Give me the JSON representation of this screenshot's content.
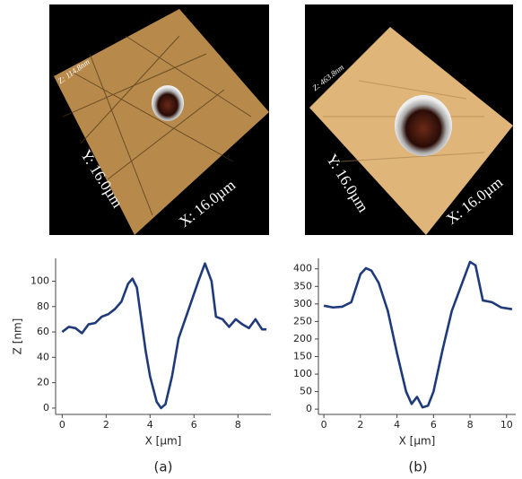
{
  "images": [
    {
      "z_label": "Z: 114.8nm",
      "y_label": "Y: 16.0µm",
      "x_label": "X: 16.0µm",
      "caption": "(a)"
    },
    {
      "z_label": "Z: 463.8nm",
      "y_label": "Y: 16.0µm",
      "x_label": "X: 16.0µm",
      "caption": "(b)"
    }
  ],
  "chart_data": [
    {
      "type": "line",
      "x_label": "X [µm]",
      "y_label": "Z [nm]",
      "x": [
        0,
        0.3,
        0.6,
        0.9,
        1.2,
        1.5,
        1.8,
        2.1,
        2.4,
        2.7,
        3.0,
        3.2,
        3.4,
        3.6,
        3.8,
        4.0,
        4.3,
        4.5,
        4.7,
        5.0,
        5.3,
        5.6,
        5.9,
        6.2,
        6.5,
        6.8,
        7.0,
        7.3,
        7.6,
        7.9,
        8.2,
        8.5,
        8.8,
        9.1,
        9.3
      ],
      "series": [
        {
          "color": "#1f3a7a",
          "values": [
            60,
            64,
            63,
            59,
            66,
            67,
            72,
            74,
            78,
            84,
            98,
            102,
            95,
            70,
            45,
            25,
            5,
            0,
            3,
            25,
            55,
            70,
            85,
            100,
            114,
            100,
            72,
            70,
            64,
            70,
            66,
            63,
            70,
            62,
            62
          ]
        }
      ],
      "xlim": [
        -0.3,
        9.5
      ],
      "xticks": [
        0,
        2,
        4,
        6,
        8
      ],
      "ylim": [
        -5,
        118
      ],
      "yticks": [
        0,
        20,
        40,
        60,
        80,
        100
      ]
    },
    {
      "type": "line",
      "x_label": "X [µm]",
      "x": [
        0,
        0.5,
        1.0,
        1.5,
        2.0,
        2.3,
        2.6,
        3.0,
        3.5,
        4.0,
        4.5,
        4.8,
        5.1,
        5.4,
        5.7,
        6.0,
        6.5,
        7.0,
        7.5,
        8.0,
        8.3,
        8.7,
        9.2,
        9.7,
        10.3
      ],
      "series": [
        {
          "color": "#1f3a7a",
          "values": [
            295,
            290,
            292,
            305,
            385,
            402,
            395,
            360,
            280,
            160,
            50,
            15,
            35,
            5,
            10,
            50,
            170,
            280,
            350,
            420,
            410,
            310,
            305,
            290,
            285
          ]
        }
      ],
      "xlim": [
        -0.3,
        10.5
      ],
      "xticks": [
        0,
        2,
        4,
        6,
        8,
        10
      ],
      "ylim": [
        -15,
        430
      ],
      "yticks": [
        0,
        50,
        100,
        150,
        200,
        250,
        300,
        350,
        400
      ]
    }
  ]
}
